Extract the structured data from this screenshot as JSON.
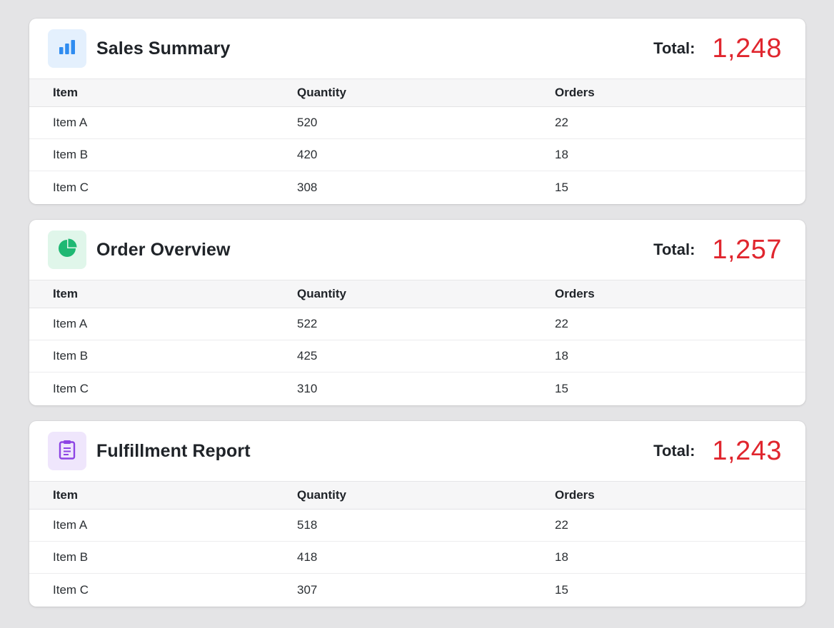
{
  "columns": [
    "Item",
    "Quantity",
    "Orders"
  ],
  "total_label": "Total:",
  "colors": {
    "total_value": "#e0262e",
    "sales_icon": "#2f8cf0",
    "sales_tile": "#e4f0fd",
    "order_icon": "#1fb873",
    "order_tile": "#e0f6ea",
    "fulfillment_icon": "#8d44e4",
    "fulfillment_tile": "#efe6fc"
  },
  "cards": [
    {
      "title": "Sales Summary",
      "icon": "bar-chart-icon",
      "total": "1,248",
      "rows": [
        {
          "item": "Item A",
          "quantity": "520",
          "orders": "22"
        },
        {
          "item": "Item B",
          "quantity": "420",
          "orders": "18"
        },
        {
          "item": "Item C",
          "quantity": "308",
          "orders": "15"
        }
      ]
    },
    {
      "title": "Order Overview",
      "icon": "pie-chart-icon",
      "total": "1,257",
      "rows": [
        {
          "item": "Item A",
          "quantity": "522",
          "orders": "22"
        },
        {
          "item": "Item B",
          "quantity": "425",
          "orders": "18"
        },
        {
          "item": "Item C",
          "quantity": "310",
          "orders": "15"
        }
      ]
    },
    {
      "title": "Fulfillment Report",
      "icon": "clipboard-icon",
      "total": "1,243",
      "rows": [
        {
          "item": "Item A",
          "quantity": "518",
          "orders": "22"
        },
        {
          "item": "Item B",
          "quantity": "418",
          "orders": "18"
        },
        {
          "item": "Item C",
          "quantity": "307",
          "orders": "15"
        }
      ]
    }
  ]
}
